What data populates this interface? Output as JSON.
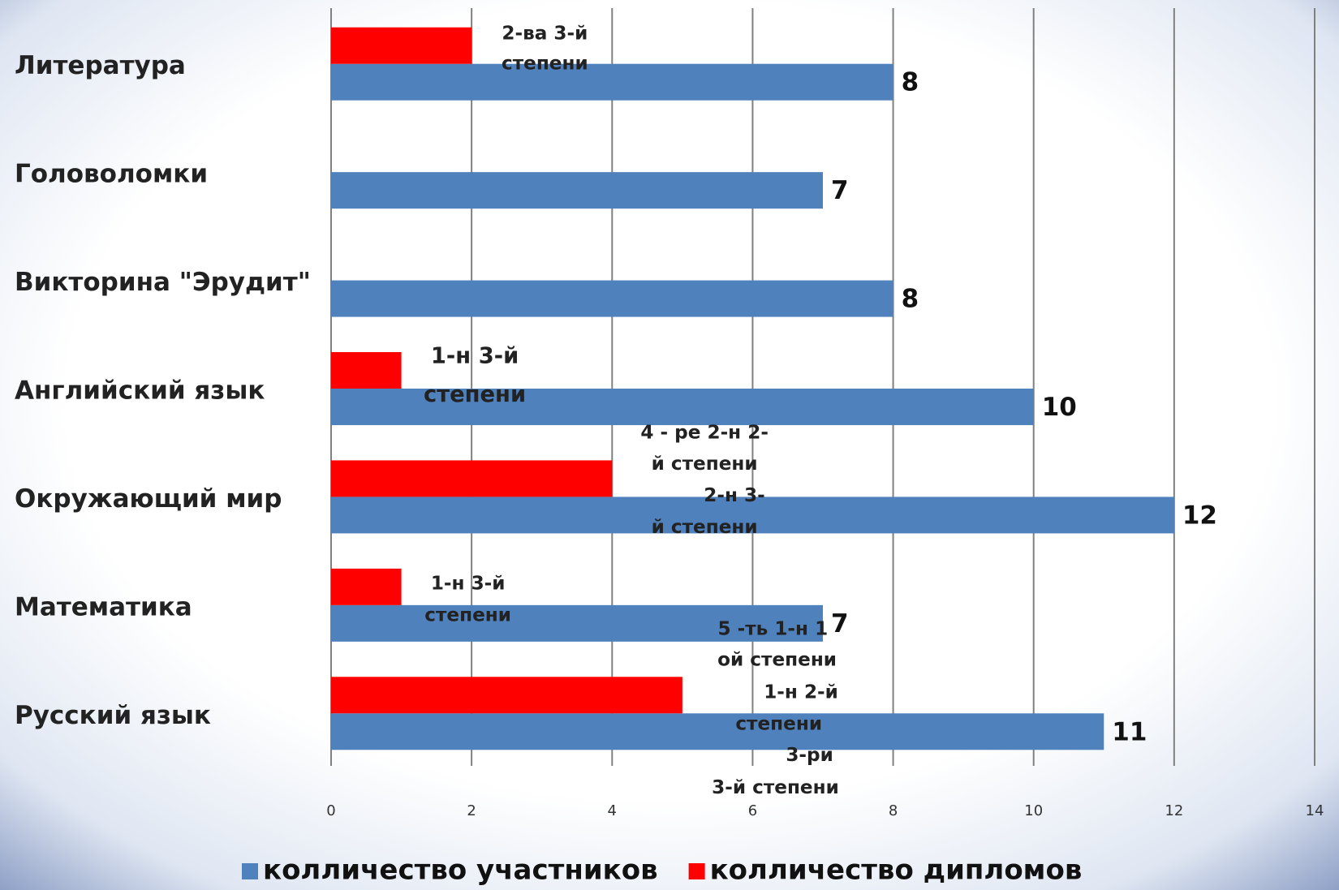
{
  "chart_data": {
    "type": "barh",
    "categories": [
      "Литература",
      "Головоломки",
      "Викторина \"Эрудит\"",
      "Английский язык",
      "Окружающий мир",
      "Математика",
      "Русский язык"
    ],
    "series": [
      {
        "name": "колличество участников",
        "color": "#4f81bd",
        "values": [
          8,
          7,
          8,
          10,
          12,
          7,
          11
        ]
      },
      {
        "name": "колличество дипломов",
        "color": "#ff0000",
        "values": [
          2,
          null,
          null,
          1,
          4,
          1,
          5
        ]
      }
    ],
    "xlim": [
      0,
      14
    ],
    "xticks": [
      0,
      2,
      4,
      6,
      8,
      10,
      12,
      14
    ],
    "grid": true,
    "legend": "bottom",
    "annotations": [
      "2-ва   3-й",
      "степени",
      "1-н 3-й",
      "степени",
      "4 - ре 2-н 2-",
      "й степени",
      "2-н 3-",
      "й степени",
      "1-н 3-й",
      "степени",
      "5 -ть 1-н 1",
      "ой степени",
      "1-н 2-й",
      "степени",
      "3-ри",
      "3-й степени"
    ]
  }
}
